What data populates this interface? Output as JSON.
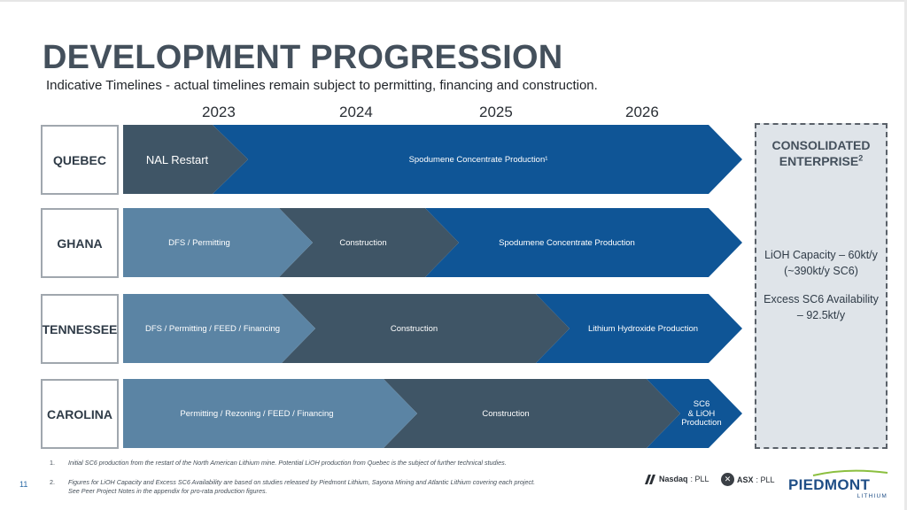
{
  "header": {
    "title": "DEVELOPMENT PROGRESSION",
    "subtitle": "Indicative Timelines - actual timelines remain subject to permitting, financing and construction."
  },
  "years": [
    "2023",
    "2024",
    "2025",
    "2026"
  ],
  "regions": [
    {
      "name": "QUEBEC",
      "phases": [
        {
          "label": "NAL Restart",
          "color": "#3f5566"
        },
        {
          "label": "Spodumene Concentrate Production¹",
          "color": "#0f5596"
        }
      ]
    },
    {
      "name": "GHANA",
      "phases": [
        {
          "label": "DFS / Permitting",
          "color": "#5b84a4"
        },
        {
          "label": "Construction",
          "color": "#3f5566"
        },
        {
          "label": "Spodumene Concentrate Production",
          "color": "#0f5596"
        }
      ]
    },
    {
      "name": "TENNESSEE",
      "phases": [
        {
          "label": "DFS / Permitting / FEED / Financing",
          "color": "#5b84a4"
        },
        {
          "label": "Construction",
          "color": "#3f5566"
        },
        {
          "label": "Lithium Hydroxide Production",
          "color": "#0f5596"
        }
      ]
    },
    {
      "name": "CAROLINA",
      "phases": [
        {
          "label": "Permitting / Rezoning / FEED / Financing",
          "color": "#5b84a4"
        },
        {
          "label": "Construction",
          "color": "#3f5566"
        },
        {
          "label": "SC6\n& LiOH\nProduction",
          "color": "#0f5596"
        }
      ]
    }
  ],
  "consolidated": {
    "title_line1": "CONSOLIDATED",
    "title_line2": "ENTERPRISE",
    "title_sup": "2",
    "capacity": "LiOH Capacity – 60kt/y (~390kt/y SC6)",
    "excess": "Excess SC6 Availability – 92.5kt/y"
  },
  "footnotes": [
    {
      "num": "1.",
      "text": "Initial SC6 production from the restart of the North American Lithium mine. Potential LiOH production from Quebec is the subject of further technical studies."
    },
    {
      "num": "2.",
      "text": "Figures for LiOH Capacity and Excess SC6 Availability are based on studies released by Piedmont Lithium, Sayona Mining and Atlantic Lithium covering each project. See Peer Project Notes in the appendix for pro-rata production figures."
    }
  ],
  "page_number": "11",
  "tickers": {
    "nasdaq": "Nasdaq",
    "nasdaq_code": ": PLL",
    "asx": "ASX",
    "asx_code": ": PLL"
  },
  "brand": {
    "name": "PIEDMONT",
    "sub": "LITHIUM"
  },
  "colors": {
    "light_phase": "#5b84a4",
    "dark_phase": "#3f5566",
    "production_phase": "#0f5596",
    "title": "#44505c"
  }
}
